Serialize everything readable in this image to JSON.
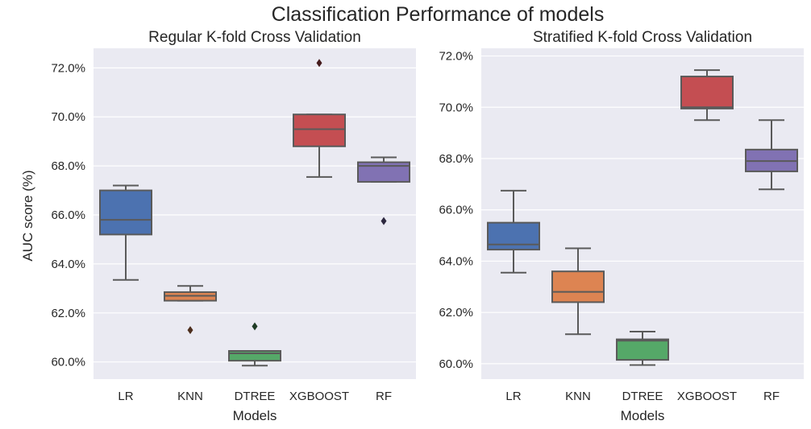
{
  "figure": {
    "title": "Classification Performance of models"
  },
  "chart_data": [
    {
      "type": "box",
      "title": "Regular K-fold Cross Validation",
      "xlabel": "Models",
      "ylabel": "AUC score (%)",
      "categories": [
        "LR",
        "KNN",
        "DTREE",
        "XGBOOST",
        "RF"
      ],
      "ylim": [
        59.3,
        72.8
      ],
      "yticks": [
        60.0,
        62.0,
        64.0,
        66.0,
        68.0,
        70.0,
        72.0
      ],
      "ytick_labels": [
        "60.0%",
        "62.0%",
        "64.0%",
        "66.0%",
        "68.0%",
        "70.0%",
        "72.0%"
      ],
      "grid": true,
      "boxes": [
        {
          "name": "LR",
          "min": 63.35,
          "q1": 65.2,
          "median": 65.8,
          "q3": 67.0,
          "max": 67.2,
          "outliers": [],
          "color": "#4c72b0"
        },
        {
          "name": "KNN",
          "min": 62.5,
          "q1": 62.5,
          "median": 62.7,
          "q3": 62.85,
          "max": 63.1,
          "outliers": [
            61.3
          ],
          "color": "#dd8452"
        },
        {
          "name": "DTREE",
          "min": 59.85,
          "q1": 60.05,
          "median": 60.35,
          "q3": 60.45,
          "max": 60.45,
          "outliers": [
            61.45
          ],
          "color": "#55a868"
        },
        {
          "name": "XGBOOST",
          "min": 67.55,
          "q1": 68.8,
          "median": 69.5,
          "q3": 70.1,
          "max": 70.1,
          "outliers": [
            72.2
          ],
          "color": "#c44e52"
        },
        {
          "name": "RF",
          "min": 67.35,
          "q1": 67.35,
          "median": 68.0,
          "q3": 68.15,
          "max": 68.35,
          "outliers": [
            65.75
          ],
          "color": "#8172b3"
        }
      ]
    },
    {
      "type": "box",
      "title": "Stratified K-fold Cross Validation",
      "xlabel": "Models",
      "ylabel": "",
      "categories": [
        "LR",
        "KNN",
        "DTREE",
        "XGBOOST",
        "RF"
      ],
      "ylim": [
        59.4,
        72.3
      ],
      "yticks": [
        60.0,
        62.0,
        64.0,
        66.0,
        68.0,
        70.0,
        72.0
      ],
      "ytick_labels": [
        "60.0%",
        "62.0%",
        "64.0%",
        "66.0%",
        "68.0%",
        "70.0%",
        "72.0%"
      ],
      "grid": true,
      "boxes": [
        {
          "name": "LR",
          "min": 63.55,
          "q1": 64.45,
          "median": 64.65,
          "q3": 65.5,
          "max": 66.75,
          "outliers": [],
          "color": "#4c72b0"
        },
        {
          "name": "KNN",
          "min": 61.15,
          "q1": 62.4,
          "median": 62.8,
          "q3": 63.6,
          "max": 64.5,
          "outliers": [],
          "color": "#dd8452"
        },
        {
          "name": "DTREE",
          "min": 59.95,
          "q1": 60.15,
          "median": 60.9,
          "q3": 60.95,
          "max": 61.25,
          "outliers": [],
          "color": "#55a868"
        },
        {
          "name": "XGBOOST",
          "min": 69.5,
          "q1": 69.95,
          "median": 70.0,
          "q3": 71.2,
          "max": 71.45,
          "outliers": [],
          "color": "#c44e52"
        },
        {
          "name": "RF",
          "min": 66.8,
          "q1": 67.5,
          "median": 67.9,
          "q3": 68.35,
          "max": 69.5,
          "outliers": [],
          "color": "#8172b3"
        }
      ]
    }
  ]
}
